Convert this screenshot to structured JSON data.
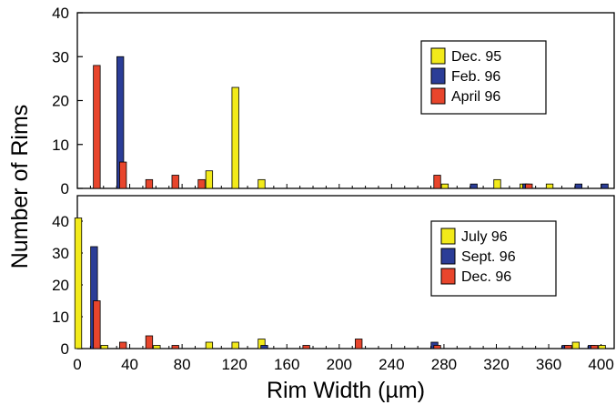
{
  "figure": {
    "ylabel": "Number of Rims",
    "xlabel": "Rim Width (µm)"
  },
  "colors": {
    "yellow": "#f2ea1a",
    "blue": "#2b3d97",
    "red": "#e8452c"
  },
  "chart_data": [
    {
      "type": "bar",
      "panel": "top",
      "ylim": [
        0,
        40
      ],
      "yticks": [
        0,
        10,
        20,
        30,
        40
      ],
      "xlim": [
        0,
        410
      ],
      "xticks": [
        0,
        40,
        80,
        120,
        160,
        200,
        240,
        280,
        320,
        360,
        400
      ],
      "grid": false,
      "legend": "top-right",
      "series": [
        {
          "name": "Dec. 95",
          "color": "yellow",
          "points": [
            [
              100,
              4
            ],
            [
              120,
              23
            ],
            [
              140,
              2
            ],
            [
              280,
              1
            ],
            [
              320,
              2
            ],
            [
              340,
              1
            ],
            [
              360,
              1
            ]
          ]
        },
        {
          "name": "Feb. 96",
          "color": "blue",
          "points": [
            [
              30,
              30
            ],
            [
              300,
              1
            ],
            [
              340,
              1
            ],
            [
              380,
              1
            ],
            [
              400,
              1
            ]
          ]
        },
        {
          "name": "April 96",
          "color": "red",
          "points": [
            [
              10,
              28
            ],
            [
              30,
              6
            ],
            [
              50,
              2
            ],
            [
              70,
              3
            ],
            [
              90,
              2
            ],
            [
              270,
              3
            ],
            [
              340,
              1
            ]
          ]
        }
      ]
    },
    {
      "type": "bar",
      "panel": "bottom",
      "ylim": [
        0,
        48
      ],
      "yticks": [
        0,
        10,
        20,
        30,
        40
      ],
      "xlim": [
        0,
        410
      ],
      "xticks": [
        0,
        40,
        80,
        120,
        160,
        200,
        240,
        280,
        320,
        360,
        400
      ],
      "xlabel": "Rim Width (µm)",
      "grid": false,
      "legend": "top-right",
      "series": [
        {
          "name": "July 96",
          "color": "yellow",
          "points": [
            [
              0,
              41
            ],
            [
              20,
              1
            ],
            [
              60,
              1
            ],
            [
              100,
              2
            ],
            [
              120,
              2
            ],
            [
              140,
              3
            ],
            [
              380,
              2
            ],
            [
              400,
              1
            ]
          ]
        },
        {
          "name": "Sept. 96",
          "color": "blue",
          "points": [
            [
              10,
              32
            ],
            [
              140,
              1
            ],
            [
              270,
              2
            ],
            [
              370,
              1
            ],
            [
              390,
              1
            ]
          ]
        },
        {
          "name": "Dec. 96",
          "color": "red",
          "points": [
            [
              10,
              15
            ],
            [
              30,
              2
            ],
            [
              50,
              4
            ],
            [
              70,
              1
            ],
            [
              170,
              1
            ],
            [
              210,
              3
            ],
            [
              270,
              1
            ],
            [
              370,
              1
            ],
            [
              390,
              1
            ]
          ]
        }
      ]
    }
  ]
}
